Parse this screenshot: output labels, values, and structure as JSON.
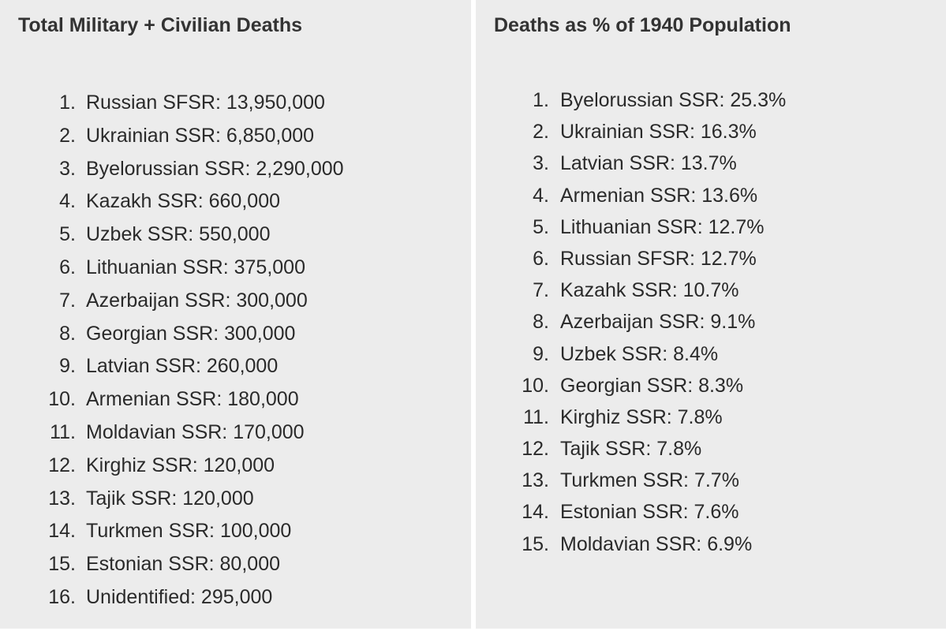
{
  "left_panel": {
    "title": "Total Military + Civilian Deaths",
    "items": [
      {
        "num": "1.",
        "text": "Russian SFSR: 13,950,000"
      },
      {
        "num": "2.",
        "text": "Ukrainian SSR: 6,850,000"
      },
      {
        "num": "3.",
        "text": "Byelorussian SSR: 2,290,000"
      },
      {
        "num": "4.",
        "text": "Kazakh SSR: 660,000"
      },
      {
        "num": "5.",
        "text": "Uzbek SSR: 550,000"
      },
      {
        "num": "6.",
        "text": "Lithuanian SSR: 375,000"
      },
      {
        "num": "7.",
        "text": "Azerbaijan SSR: 300,000"
      },
      {
        "num": "8.",
        "text": "Georgian SSR: 300,000"
      },
      {
        "num": "9.",
        "text": "Latvian SSR: 260,000"
      },
      {
        "num": "10.",
        "text": "Armenian SSR: 180,000"
      },
      {
        "num": "11.",
        "text": "Moldavian SSR: 170,000"
      },
      {
        "num": "12.",
        "text": "Kirghiz SSR: 120,000"
      },
      {
        "num": "13.",
        "text": "Tajik SSR: 120,000"
      },
      {
        "num": "14.",
        "text": "Turkmen SSR: 100,000"
      },
      {
        "num": "15.",
        "text": "Estonian SSR: 80,000"
      },
      {
        "num": "16.",
        "text": "Unidentified: 295,000"
      }
    ]
  },
  "right_panel": {
    "title": "Deaths as % of 1940 Population",
    "items": [
      {
        "num": "1.",
        "text": "Byelorussian SSR: 25.3%"
      },
      {
        "num": "2.",
        "text": "Ukrainian SSR: 16.3%"
      },
      {
        "num": "3.",
        "text": "Latvian SSR: 13.7%"
      },
      {
        "num": "4.",
        "text": "Armenian SSR: 13.6%"
      },
      {
        "num": "5.",
        "text": "Lithuanian SSR: 12.7%"
      },
      {
        "num": "6.",
        "text": "Russian SFSR: 12.7%"
      },
      {
        "num": "7.",
        "text": "Kazahk SSR: 10.7%"
      },
      {
        "num": "8.",
        "text": "Azerbaijan SSR: 9.1%"
      },
      {
        "num": "9.",
        "text": "Uzbek SSR: 8.4%"
      },
      {
        "num": "10.",
        "text": "Georgian SSR: 8.3%"
      },
      {
        "num": "11.",
        "text": "Kirghiz SSR: 7.8%"
      },
      {
        "num": "12.",
        "text": "Tajik SSR: 7.8%"
      },
      {
        "num": "13.",
        "text": "Turkmen SSR: 7.7%"
      },
      {
        "num": "14.",
        "text": "Estonian SSR: 7.6%"
      },
      {
        "num": "15.",
        "text": "Moldavian SSR: 6.9%"
      }
    ]
  }
}
